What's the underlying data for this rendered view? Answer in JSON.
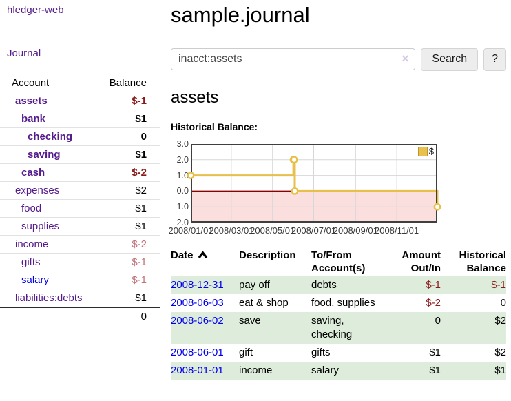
{
  "sidebar": {
    "brand": "hledger-web",
    "journal_label": "Journal",
    "accounts_table": {
      "headers": [
        "Account",
        "Balance"
      ],
      "rows": [
        {
          "name": "assets",
          "balance": "$-1",
          "depth": 1,
          "bold": true,
          "balance_class": "neg"
        },
        {
          "name": "bank",
          "balance": "$1",
          "depth": 2,
          "bold": true,
          "balance_class": ""
        },
        {
          "name": "checking",
          "balance": "0",
          "depth": 3,
          "bold": true,
          "balance_class": ""
        },
        {
          "name": "saving",
          "balance": "$1",
          "depth": 3,
          "bold": true,
          "balance_class": ""
        },
        {
          "name": "cash",
          "balance": "$-2",
          "depth": 2,
          "bold": true,
          "balance_class": "neg"
        },
        {
          "name": "expenses",
          "balance": "$2",
          "depth": 1,
          "bold": false,
          "balance_class": ""
        },
        {
          "name": "food",
          "balance": "$1",
          "depth": 2,
          "bold": false,
          "balance_class": ""
        },
        {
          "name": "supplies",
          "balance": "$1",
          "depth": 2,
          "bold": false,
          "balance_class": ""
        },
        {
          "name": "income",
          "balance": "$-2",
          "depth": 1,
          "bold": false,
          "balance_class": "negfade"
        },
        {
          "name": "gifts",
          "balance": "$-1",
          "depth": 2,
          "bold": false,
          "balance_class": "negfade"
        },
        {
          "name": "salary",
          "balance": "$-1",
          "depth": 2,
          "bold": false,
          "balance_class": "negfade",
          "link_color": "blue"
        },
        {
          "name": "liabilities:debts",
          "balance": "$1",
          "depth": 1,
          "bold": false,
          "balance_class": ""
        }
      ],
      "total": "0"
    }
  },
  "main": {
    "title": "sample.journal",
    "search": {
      "value": "inacct:assets",
      "clear_icon": "✕",
      "button": "Search",
      "help_button": "?"
    },
    "account_heading": "assets",
    "chart_label": "Historical Balance:"
  },
  "chart_data": {
    "type": "line",
    "title": "Historical Balance",
    "series": [
      {
        "name": "$",
        "style": "step",
        "color": "#e8bf49",
        "points": [
          {
            "date": "2008-01-01",
            "t": 0.0,
            "y": 1
          },
          {
            "date": "2008-06-01",
            "t": 0.4164,
            "y": 2
          },
          {
            "date": "2008-06-02",
            "t": 0.4192,
            "y": 2
          },
          {
            "date": "2008-06-03",
            "t": 0.4219,
            "y": 0
          },
          {
            "date": "2008-12-31",
            "t": 1.0,
            "y": -1
          }
        ]
      }
    ],
    "ylim": [
      -2,
      3
    ],
    "yticks": [
      3,
      2,
      1,
      0,
      -1,
      -2
    ],
    "ytick_labels": [
      "3.0",
      "2.0",
      "1.0",
      "0.0",
      "-1.0",
      "-2.0"
    ],
    "xticks": [
      {
        "label": "2008/01/01",
        "t": 0.0
      },
      {
        "label": "2008/03/01",
        "t": 0.1644
      },
      {
        "label": "2008/05/01",
        "t": 0.3315
      },
      {
        "label": "2008/07/01",
        "t": 0.4986
      },
      {
        "label": "2008/09/01",
        "t": 0.6685
      },
      {
        "label": "2008/11/01",
        "t": 0.8356
      }
    ],
    "legend": {
      "label": "$",
      "swatch_color": "#e8c14f",
      "position": "top-right"
    },
    "grid": true,
    "negative_region": {
      "fill": "#fbdede",
      "zero_line_color": "#8b0000"
    },
    "colors": {
      "grid": "#d7d7d7",
      "border": "#3f3f3f",
      "marker_fill": "#ffffff"
    }
  },
  "register": {
    "headers": [
      {
        "key": "date",
        "lines": [
          "Date"
        ],
        "align": "left",
        "sort": true
      },
      {
        "key": "description",
        "lines": [
          "Description"
        ],
        "align": "left"
      },
      {
        "key": "accounts",
        "lines": [
          "To/From",
          "Account(s)"
        ],
        "align": "left"
      },
      {
        "key": "amount",
        "lines": [
          "Amount",
          "Out/In"
        ],
        "align": "right"
      },
      {
        "key": "balance",
        "lines": [
          "Historical",
          "Balance"
        ],
        "align": "right"
      }
    ],
    "rows": [
      {
        "date": "2008-12-31",
        "description": "pay off",
        "accounts": [
          "debts"
        ],
        "amount": "$-1",
        "amount_negative": true,
        "balance": "$-1",
        "balance_negative": true
      },
      {
        "date": "2008-06-03",
        "description": "eat & shop",
        "accounts": [
          "food, supplies"
        ],
        "amount": "$-2",
        "amount_negative": true,
        "balance": "0",
        "balance_negative": false
      },
      {
        "date": "2008-06-02",
        "description": "save",
        "accounts": [
          "saving,",
          "checking"
        ],
        "amount": "0",
        "amount_negative": false,
        "balance": "$2",
        "balance_negative": false
      },
      {
        "date": "2008-06-01",
        "description": "gift",
        "accounts": [
          "gifts"
        ],
        "amount": "$1",
        "amount_negative": false,
        "balance": "$2",
        "balance_negative": false
      },
      {
        "date": "2008-01-01",
        "description": "income",
        "accounts": [
          "salary"
        ],
        "amount": "$1",
        "amount_negative": false,
        "balance": "$1",
        "balance_negative": false
      }
    ]
  },
  "colors": {
    "link_purple": "#551a8b",
    "link_blue": "#0000ee",
    "negative": "#8b1a1a",
    "negative_faded": "#c0737a",
    "row_green": "#deecdb",
    "chart_gold": "#e8bf49",
    "chart_pink": "#fbdede",
    "chart_zero_red": "#8b0000"
  }
}
